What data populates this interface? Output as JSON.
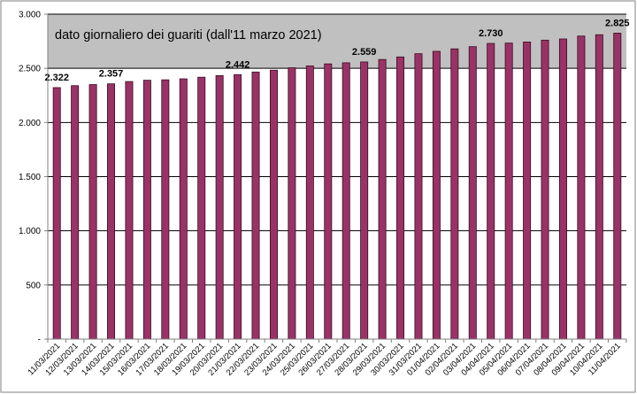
{
  "chart_data": {
    "type": "bar",
    "title": "dato giornaliero dei guariti (dall'11 marzo 2021)",
    "categories": [
      "11/03/2021",
      "12/03/2021",
      "13/03/2021",
      "14/03/2021",
      "15/03/2021",
      "16/03/2021",
      "17/03/2021",
      "18/03/2021",
      "19/03/2021",
      "20/03/2021",
      "21/03/2021",
      "22/03/2021",
      "23/03/2021",
      "24/03/2021",
      "25/03/2021",
      "26/03/2021",
      "27/03/2021",
      "28/03/2021",
      "29/03/2021",
      "30/03/2021",
      "31/03/2021",
      "01/04/2021",
      "02/04/2021",
      "03/04/2021",
      "04/04/2021",
      "05/04/2021",
      "06/04/2021",
      "07/04/2021",
      "08/04/2021",
      "09/04/2021",
      "10/04/2021",
      "11/04/2021"
    ],
    "values": [
      2322,
      2340,
      2350,
      2357,
      2378,
      2390,
      2394,
      2403,
      2418,
      2433,
      2442,
      2466,
      2483,
      2505,
      2522,
      2541,
      2551,
      2559,
      2582,
      2605,
      2635,
      2657,
      2680,
      2700,
      2730,
      2733,
      2743,
      2760,
      2771,
      2798,
      2810,
      2825
    ],
    "labeled_points": [
      {
        "index": 0,
        "text": "2.322"
      },
      {
        "index": 3,
        "text": "2.357"
      },
      {
        "index": 10,
        "text": "2.442"
      },
      {
        "index": 17,
        "text": "2.559"
      },
      {
        "index": 24,
        "text": "2.730"
      },
      {
        "index": 31,
        "text": "2.825"
      }
    ],
    "y_ticks": [
      "-",
      "500",
      "1.000",
      "1.500",
      "2.000",
      "2.500",
      "3.000"
    ],
    "ylim": [
      0,
      3000
    ],
    "grid": true,
    "plot_background_above_value": 2500,
    "colors": {
      "bar_fill": "#993366",
      "bar_stroke": "#3a0a22",
      "plot_band": "#c0c0c0",
      "gridline": "#000000",
      "axis": "#808080"
    }
  }
}
